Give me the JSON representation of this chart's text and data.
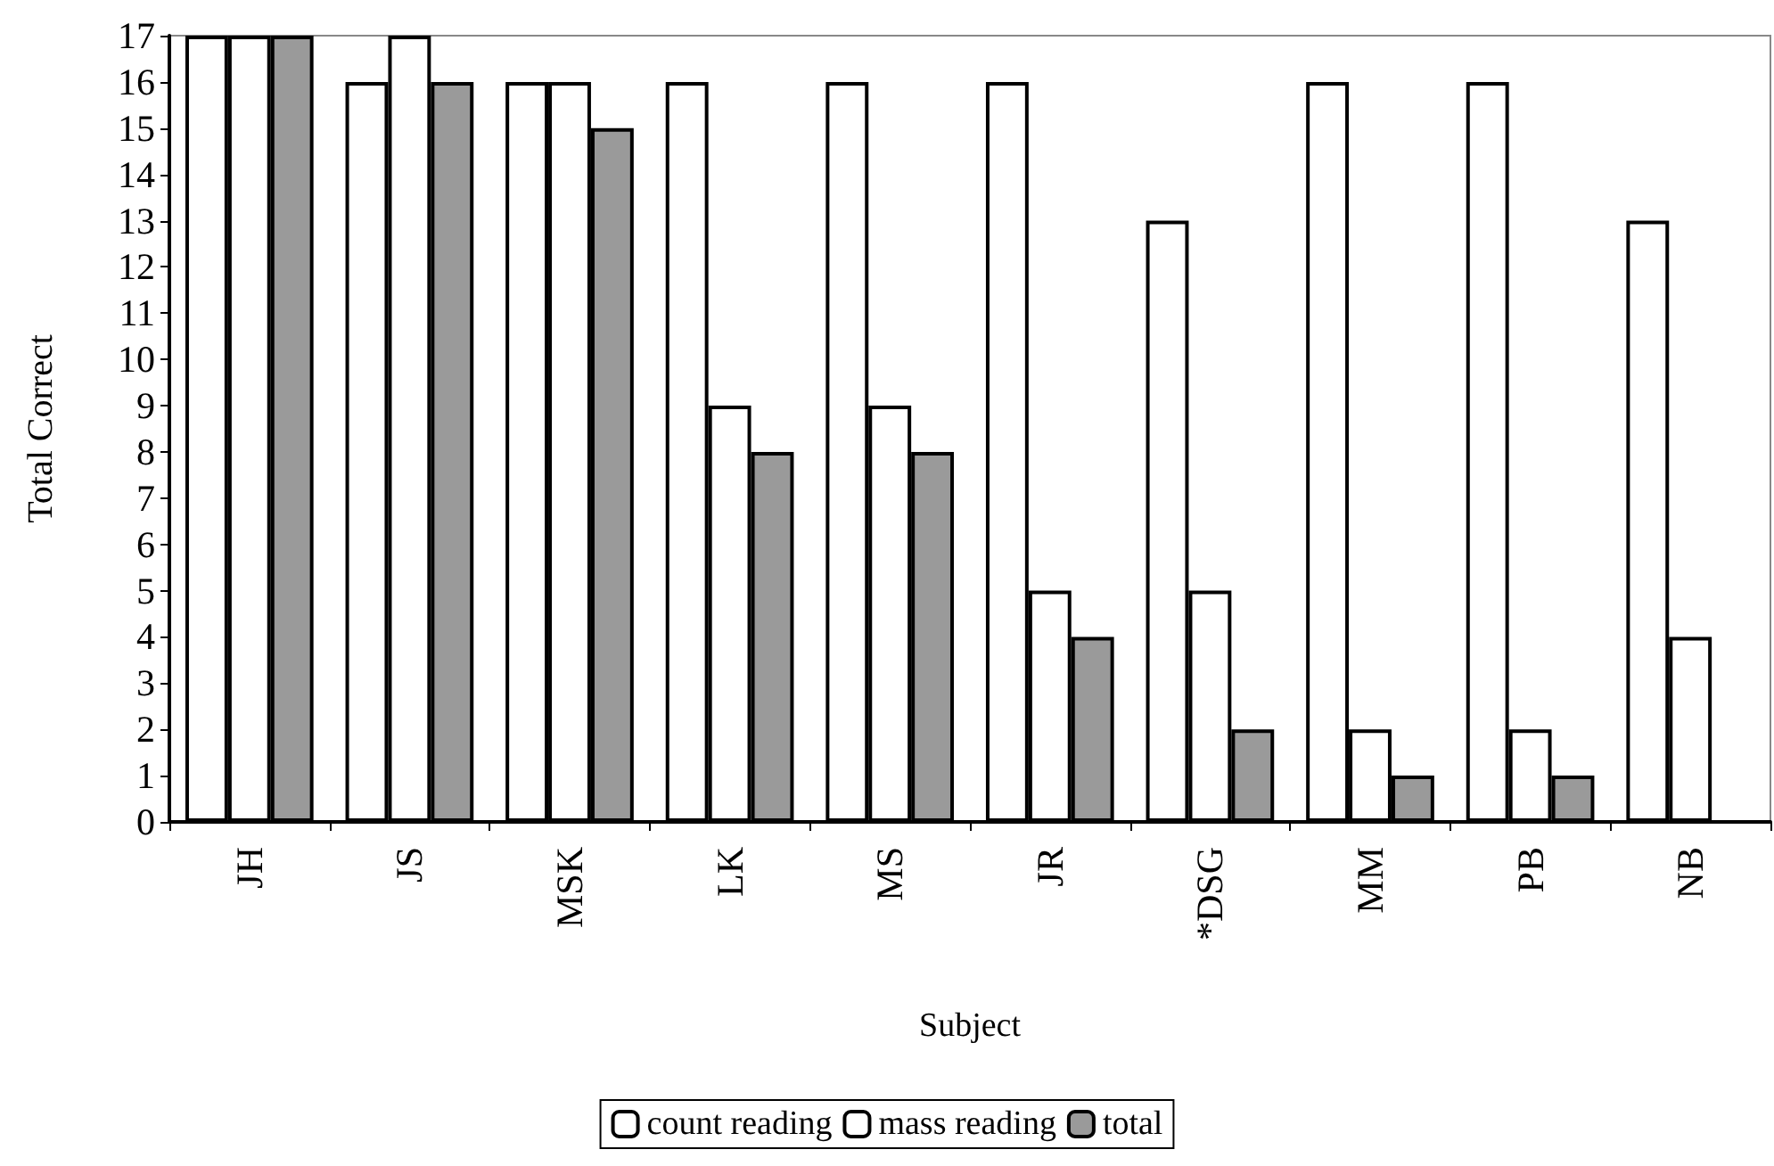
{
  "chart_data": {
    "type": "bar",
    "xlabel": "Subject",
    "ylabel": "Total Correct",
    "categories": [
      "JH",
      "JS",
      "MSK",
      "LK",
      "MS",
      "JR",
      "*DSG",
      "MM",
      "PB",
      "NB"
    ],
    "series": [
      {
        "name": "count reading",
        "color": "#ffffff",
        "values": [
          17,
          16,
          16,
          16,
          16,
          16,
          13,
          16,
          16,
          13
        ]
      },
      {
        "name": "mass reading",
        "color": "#ffffff",
        "values": [
          17,
          17,
          16,
          9,
          9,
          5,
          5,
          2,
          2,
          4
        ]
      },
      {
        "name": "total",
        "color": "#9a9a9a",
        "values": [
          17,
          16,
          15,
          8,
          8,
          4,
          2,
          1,
          1,
          null
        ]
      }
    ],
    "ylim": [
      0,
      17
    ],
    "yticks": [
      0,
      1,
      2,
      3,
      4,
      5,
      6,
      7,
      8,
      9,
      10,
      11,
      12,
      13,
      14,
      15,
      16,
      17
    ],
    "grid": false,
    "legend": "bottom"
  }
}
